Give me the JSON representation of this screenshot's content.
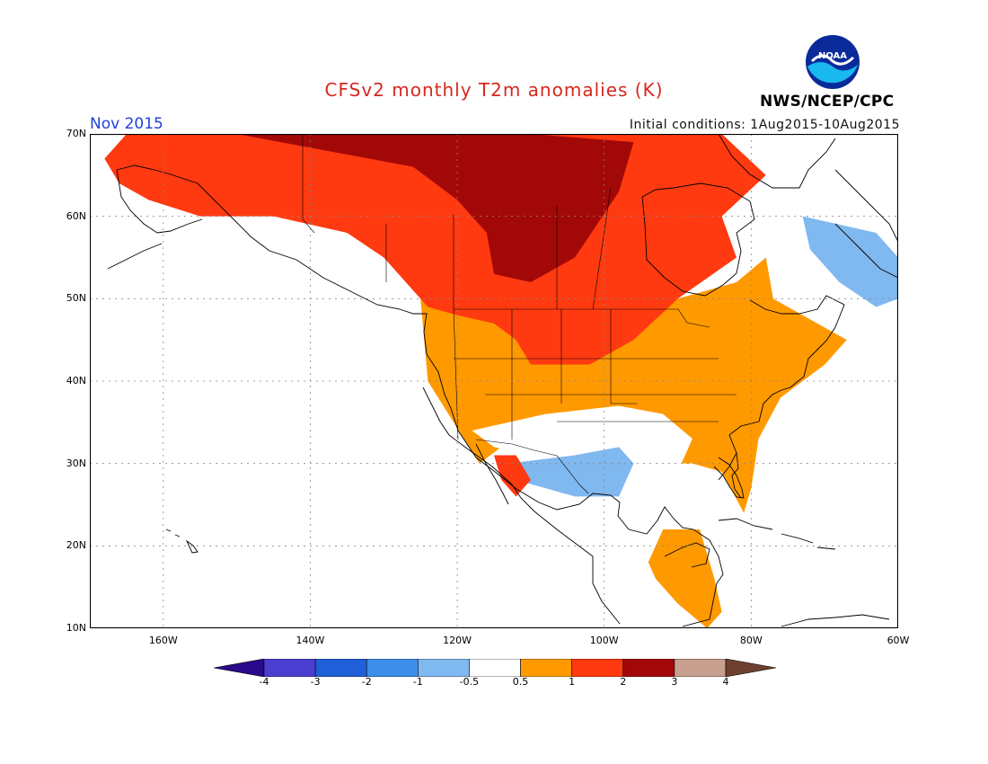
{
  "header": {
    "title": "CFSv2 monthly T2m anomalies (K)",
    "title_color": "#d6281e",
    "month": "Nov 2015",
    "month_color": "#1f3fd8",
    "initial_conditions": "Initial conditions: 1Aug2015-10Aug2015",
    "agency": "NWS/NCEP/CPC",
    "logo_text": "NOAA"
  },
  "map": {
    "lon_range": [
      -170,
      -60
    ],
    "lat_range": [
      10,
      70
    ],
    "grid": true,
    "lat_labels": [
      "70N",
      "60N",
      "50N",
      "40N",
      "30N",
      "20N",
      "10N"
    ],
    "lat_values": [
      70,
      60,
      50,
      40,
      30,
      20,
      10
    ],
    "lon_labels": [
      "160W",
      "140W",
      "120W",
      "100W",
      "80W",
      "60W"
    ],
    "lon_values": [
      -160,
      -140,
      -120,
      -100,
      -80,
      -60
    ]
  },
  "colorbar": {
    "labels": [
      "-4",
      "-3",
      "-2",
      "-1",
      "-0.5",
      "0.5",
      "1",
      "2",
      "3",
      "4"
    ],
    "colors": [
      "#2a0a8c",
      "#4a3fd0",
      "#1f5fd8",
      "#3d8ee8",
      "#80b8f0",
      "#ffffff",
      "#ff9900",
      "#ff3a10",
      "#a30808",
      "#c8a090",
      "#6e4030"
    ]
  }
}
